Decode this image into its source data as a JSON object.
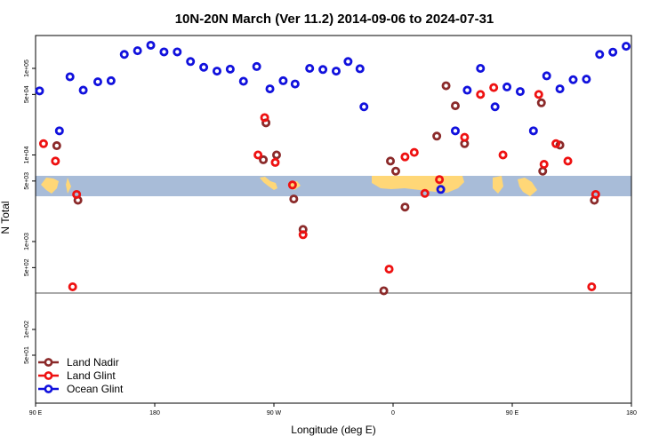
{
  "chart_data": {
    "type": "scatter",
    "title": "10N-20N March (Ver 11.2)   2014-09-06 to 2024-07-31",
    "xlabel": "Longitude (deg E)",
    "ylabel": "N Total",
    "x_ticks": [
      {
        "value": 90,
        "label": "90 E"
      },
      {
        "value": 180,
        "label": "180"
      },
      {
        "value": 270,
        "label": "90 W"
      },
      {
        "value": 360,
        "label": "0"
      },
      {
        "value": 450,
        "label": "90 E"
      },
      {
        "value": 540,
        "label": "180"
      }
    ],
    "y_ticks": [
      {
        "value": 50,
        "label": "5e+01"
      },
      {
        "value": 100,
        "label": "1e+02"
      },
      {
        "value": 500,
        "label": "5e+02"
      },
      {
        "value": 1000,
        "label": "1e+03"
      },
      {
        "value": 5000,
        "label": "5e+03"
      },
      {
        "value": 10000,
        "label": "1e+04"
      },
      {
        "value": 50000,
        "label": "5e+04"
      },
      {
        "value": 100000,
        "label": "1e+05"
      }
    ],
    "y_scale": "log",
    "xlim": [
      90,
      540
    ],
    "legend_position": "bottom-left",
    "series": [
      {
        "name": "Land Nadir",
        "color": "#8b2a2a",
        "points": [
          {
            "x": 106,
            "y": 12800
          },
          {
            "x": 122,
            "y": 3000
          },
          {
            "x": 262,
            "y": 8800
          },
          {
            "x": 264,
            "y": 23500
          },
          {
            "x": 272,
            "y": 10000
          },
          {
            "x": 285,
            "y": 3100
          },
          {
            "x": 292,
            "y": 1380
          },
          {
            "x": 353,
            "y": 270
          },
          {
            "x": 358,
            "y": 8500
          },
          {
            "x": 362,
            "y": 6500
          },
          {
            "x": 369,
            "y": 2500
          },
          {
            "x": 393,
            "y": 16500
          },
          {
            "x": 400,
            "y": 63000
          },
          {
            "x": 407,
            "y": 37000
          },
          {
            "x": 414,
            "y": 13500
          },
          {
            "x": 472,
            "y": 40000
          },
          {
            "x": 473,
            "y": 6500
          },
          {
            "x": 486,
            "y": 13000
          },
          {
            "x": 512,
            "y": 3000
          }
        ]
      },
      {
        "name": "Land Glint",
        "color": "#ee1111",
        "points": [
          {
            "x": 96,
            "y": 13500
          },
          {
            "x": 105,
            "y": 8500
          },
          {
            "x": 118,
            "y": 300
          },
          {
            "x": 121,
            "y": 3500
          },
          {
            "x": 258,
            "y": 10000
          },
          {
            "x": 263,
            "y": 27000
          },
          {
            "x": 271,
            "y": 8200
          },
          {
            "x": 284,
            "y": 4500
          },
          {
            "x": 292,
            "y": 1200
          },
          {
            "x": 357,
            "y": 480
          },
          {
            "x": 369,
            "y": 9500
          },
          {
            "x": 376,
            "y": 10700
          },
          {
            "x": 384,
            "y": 3600
          },
          {
            "x": 395,
            "y": 5200
          },
          {
            "x": 414,
            "y": 16000
          },
          {
            "x": 426,
            "y": 50000
          },
          {
            "x": 436,
            "y": 60000
          },
          {
            "x": 443,
            "y": 10000
          },
          {
            "x": 470,
            "y": 50000
          },
          {
            "x": 474,
            "y": 7800
          },
          {
            "x": 483,
            "y": 13500
          },
          {
            "x": 492,
            "y": 8500
          },
          {
            "x": 510,
            "y": 300
          },
          {
            "x": 513,
            "y": 3500
          }
        ]
      },
      {
        "name": "Ocean Glint",
        "color": "#1111dd",
        "points": [
          {
            "x": 93,
            "y": 55000
          },
          {
            "x": 108,
            "y": 19000
          },
          {
            "x": 116,
            "y": 80000
          },
          {
            "x": 126,
            "y": 56000
          },
          {
            "x": 137,
            "y": 70000
          },
          {
            "x": 147,
            "y": 72000
          },
          {
            "x": 157,
            "y": 145000
          },
          {
            "x": 167,
            "y": 160000
          },
          {
            "x": 177,
            "y": 185000
          },
          {
            "x": 187,
            "y": 155000
          },
          {
            "x": 197,
            "y": 155000
          },
          {
            "x": 207,
            "y": 120000
          },
          {
            "x": 217,
            "y": 103000
          },
          {
            "x": 227,
            "y": 93000
          },
          {
            "x": 237,
            "y": 98000
          },
          {
            "x": 247,
            "y": 71000
          },
          {
            "x": 257,
            "y": 105000
          },
          {
            "x": 267,
            "y": 58000
          },
          {
            "x": 277,
            "y": 72000
          },
          {
            "x": 286,
            "y": 66000
          },
          {
            "x": 297,
            "y": 100000
          },
          {
            "x": 307,
            "y": 97000
          },
          {
            "x": 317,
            "y": 93000
          },
          {
            "x": 326,
            "y": 120000
          },
          {
            "x": 335,
            "y": 99000
          },
          {
            "x": 338,
            "y": 36000
          },
          {
            "x": 396,
            "y": 4000
          },
          {
            "x": 407,
            "y": 19000
          },
          {
            "x": 416,
            "y": 56000
          },
          {
            "x": 426,
            "y": 100000
          },
          {
            "x": 437,
            "y": 36000
          },
          {
            "x": 446,
            "y": 61000
          },
          {
            "x": 456,
            "y": 54000
          },
          {
            "x": 466,
            "y": 19000
          },
          {
            "x": 476,
            "y": 82000
          },
          {
            "x": 486,
            "y": 58000
          },
          {
            "x": 496,
            "y": 74000
          },
          {
            "x": 506,
            "y": 75000
          },
          {
            "x": 516,
            "y": 145000
          },
          {
            "x": 526,
            "y": 154000
          },
          {
            "x": 536,
            "y": 180000
          }
        ]
      }
    ]
  }
}
